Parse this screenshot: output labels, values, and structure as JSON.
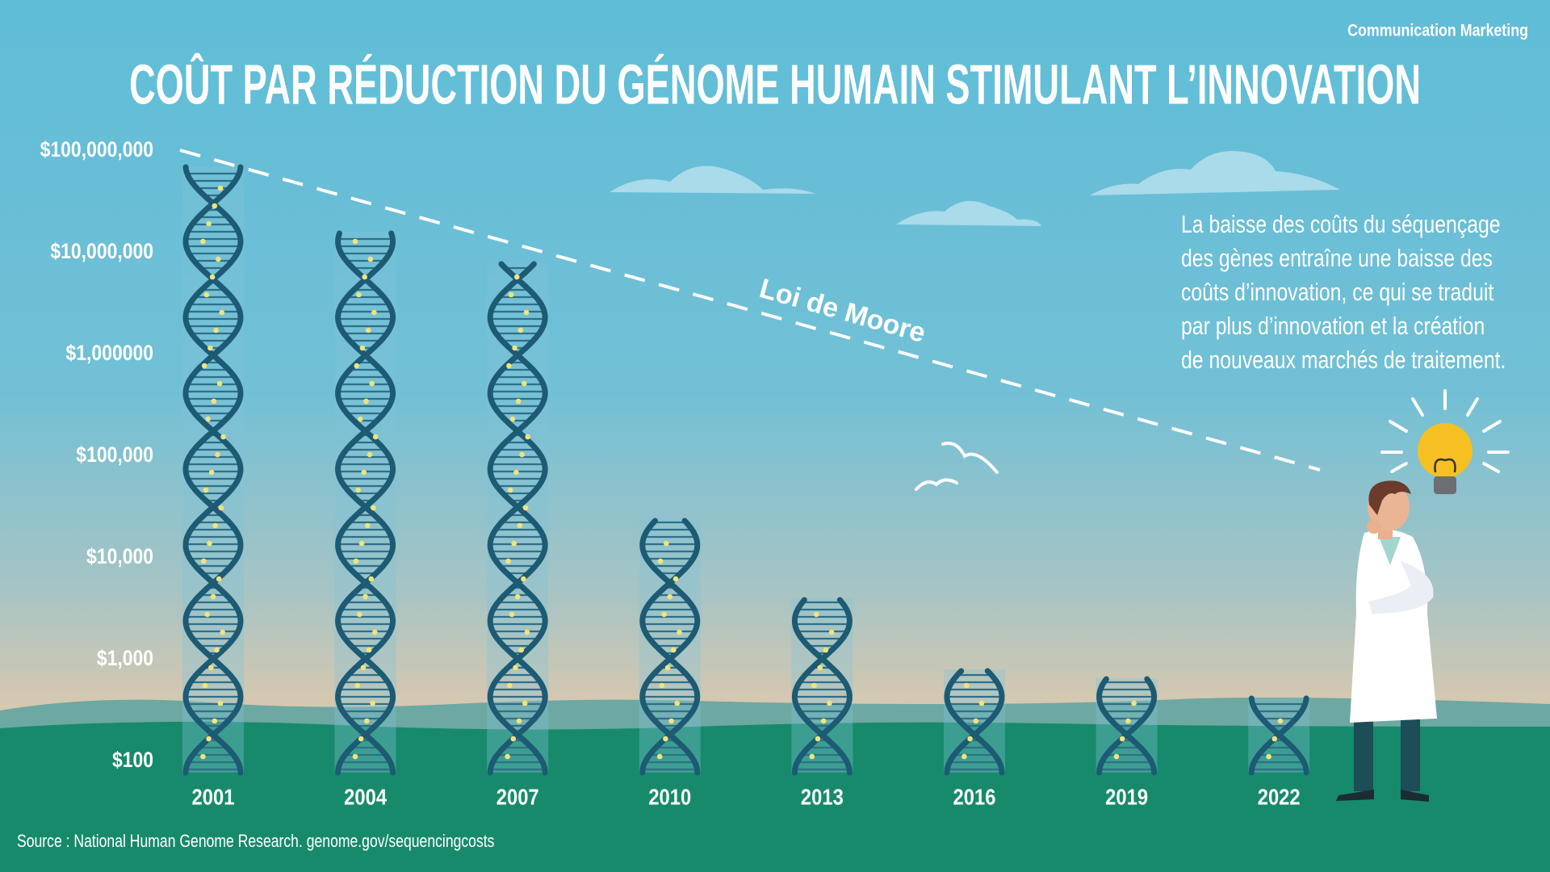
{
  "chart_data": {
    "type": "bar",
    "title": "COÛT PAR RÉDUCTION DU GÉNOME HUMAIN STIMULANT L’INNOVATION",
    "brand": "Communication Marketing",
    "note": [
      "La baisse des coûts du séquençage",
      "des gènes entraîne une baisse des",
      "coûts d’innovation, ce qui se traduit",
      "par plus d’innovation et la création",
      "de nouveaux marchés de traitement."
    ],
    "trend_label": "Loi de Moore",
    "source": "Source : National Human Genome Research. genome.gov/sequencingcosts",
    "categories": [
      "2001",
      "2004",
      "2007",
      "2010",
      "2013",
      "2016",
      "2019",
      "2022"
    ],
    "values": [
      70000000,
      16000000,
      8000000,
      24000,
      4000,
      800,
      650,
      420
    ],
    "color": "#1d5a73",
    "log_scale": true,
    "ylim": [
      100,
      100000000
    ],
    "yticks": [
      {
        "value": 100000000,
        "label": "$100,000,000"
      },
      {
        "value": 10000000,
        "label": "$10,000,000"
      },
      {
        "value": 1000000,
        "label": "$1,000000"
      },
      {
        "value": 100000,
        "label": "$100,000"
      },
      {
        "value": 10000,
        "label": "$10,000"
      },
      {
        "value": 1000,
        "label": "$1,000"
      },
      {
        "value": 100,
        "label": "$100"
      }
    ]
  }
}
